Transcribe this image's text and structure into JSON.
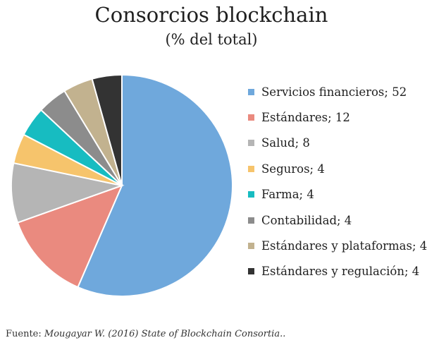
{
  "chart_data": {
    "type": "pie",
    "title": "Consorcios blockchain",
    "subtitle": "(% del total)",
    "legend_position": "right",
    "series": [
      {
        "label": "Servicios financieros; 52",
        "name": "Servicios financieros",
        "value": 52,
        "color": "#6fa8dc"
      },
      {
        "label": "Estándares; 12",
        "name": "Estándares",
        "value": 12,
        "color": "#ea8a7f"
      },
      {
        "label": "Salud; 8",
        "name": "Salud",
        "value": 8,
        "color": "#b5b5b5"
      },
      {
        "label": "Seguros; 4",
        "name": "Seguros",
        "value": 4,
        "color": "#f6c46c"
      },
      {
        "label": "Farma; 4",
        "name": "Farma",
        "value": 4,
        "color": "#17bcc1"
      },
      {
        "label": "Contabilidad; 4",
        "name": "Contabilidad",
        "value": 4,
        "color": "#8c8c8c"
      },
      {
        "label": "Estándares y plataformas; 4",
        "name": "Estándares y plataformas",
        "value": 4,
        "color": "#c2b28f"
      },
      {
        "label": "Estándares y regulación; 4",
        "name": "Estándares y regulación",
        "value": 4,
        "color": "#333333"
      }
    ]
  },
  "source": {
    "prefix": "Fuente: ",
    "citation": "Mougayar W. (2016) State of Blockchain Consortia.."
  }
}
